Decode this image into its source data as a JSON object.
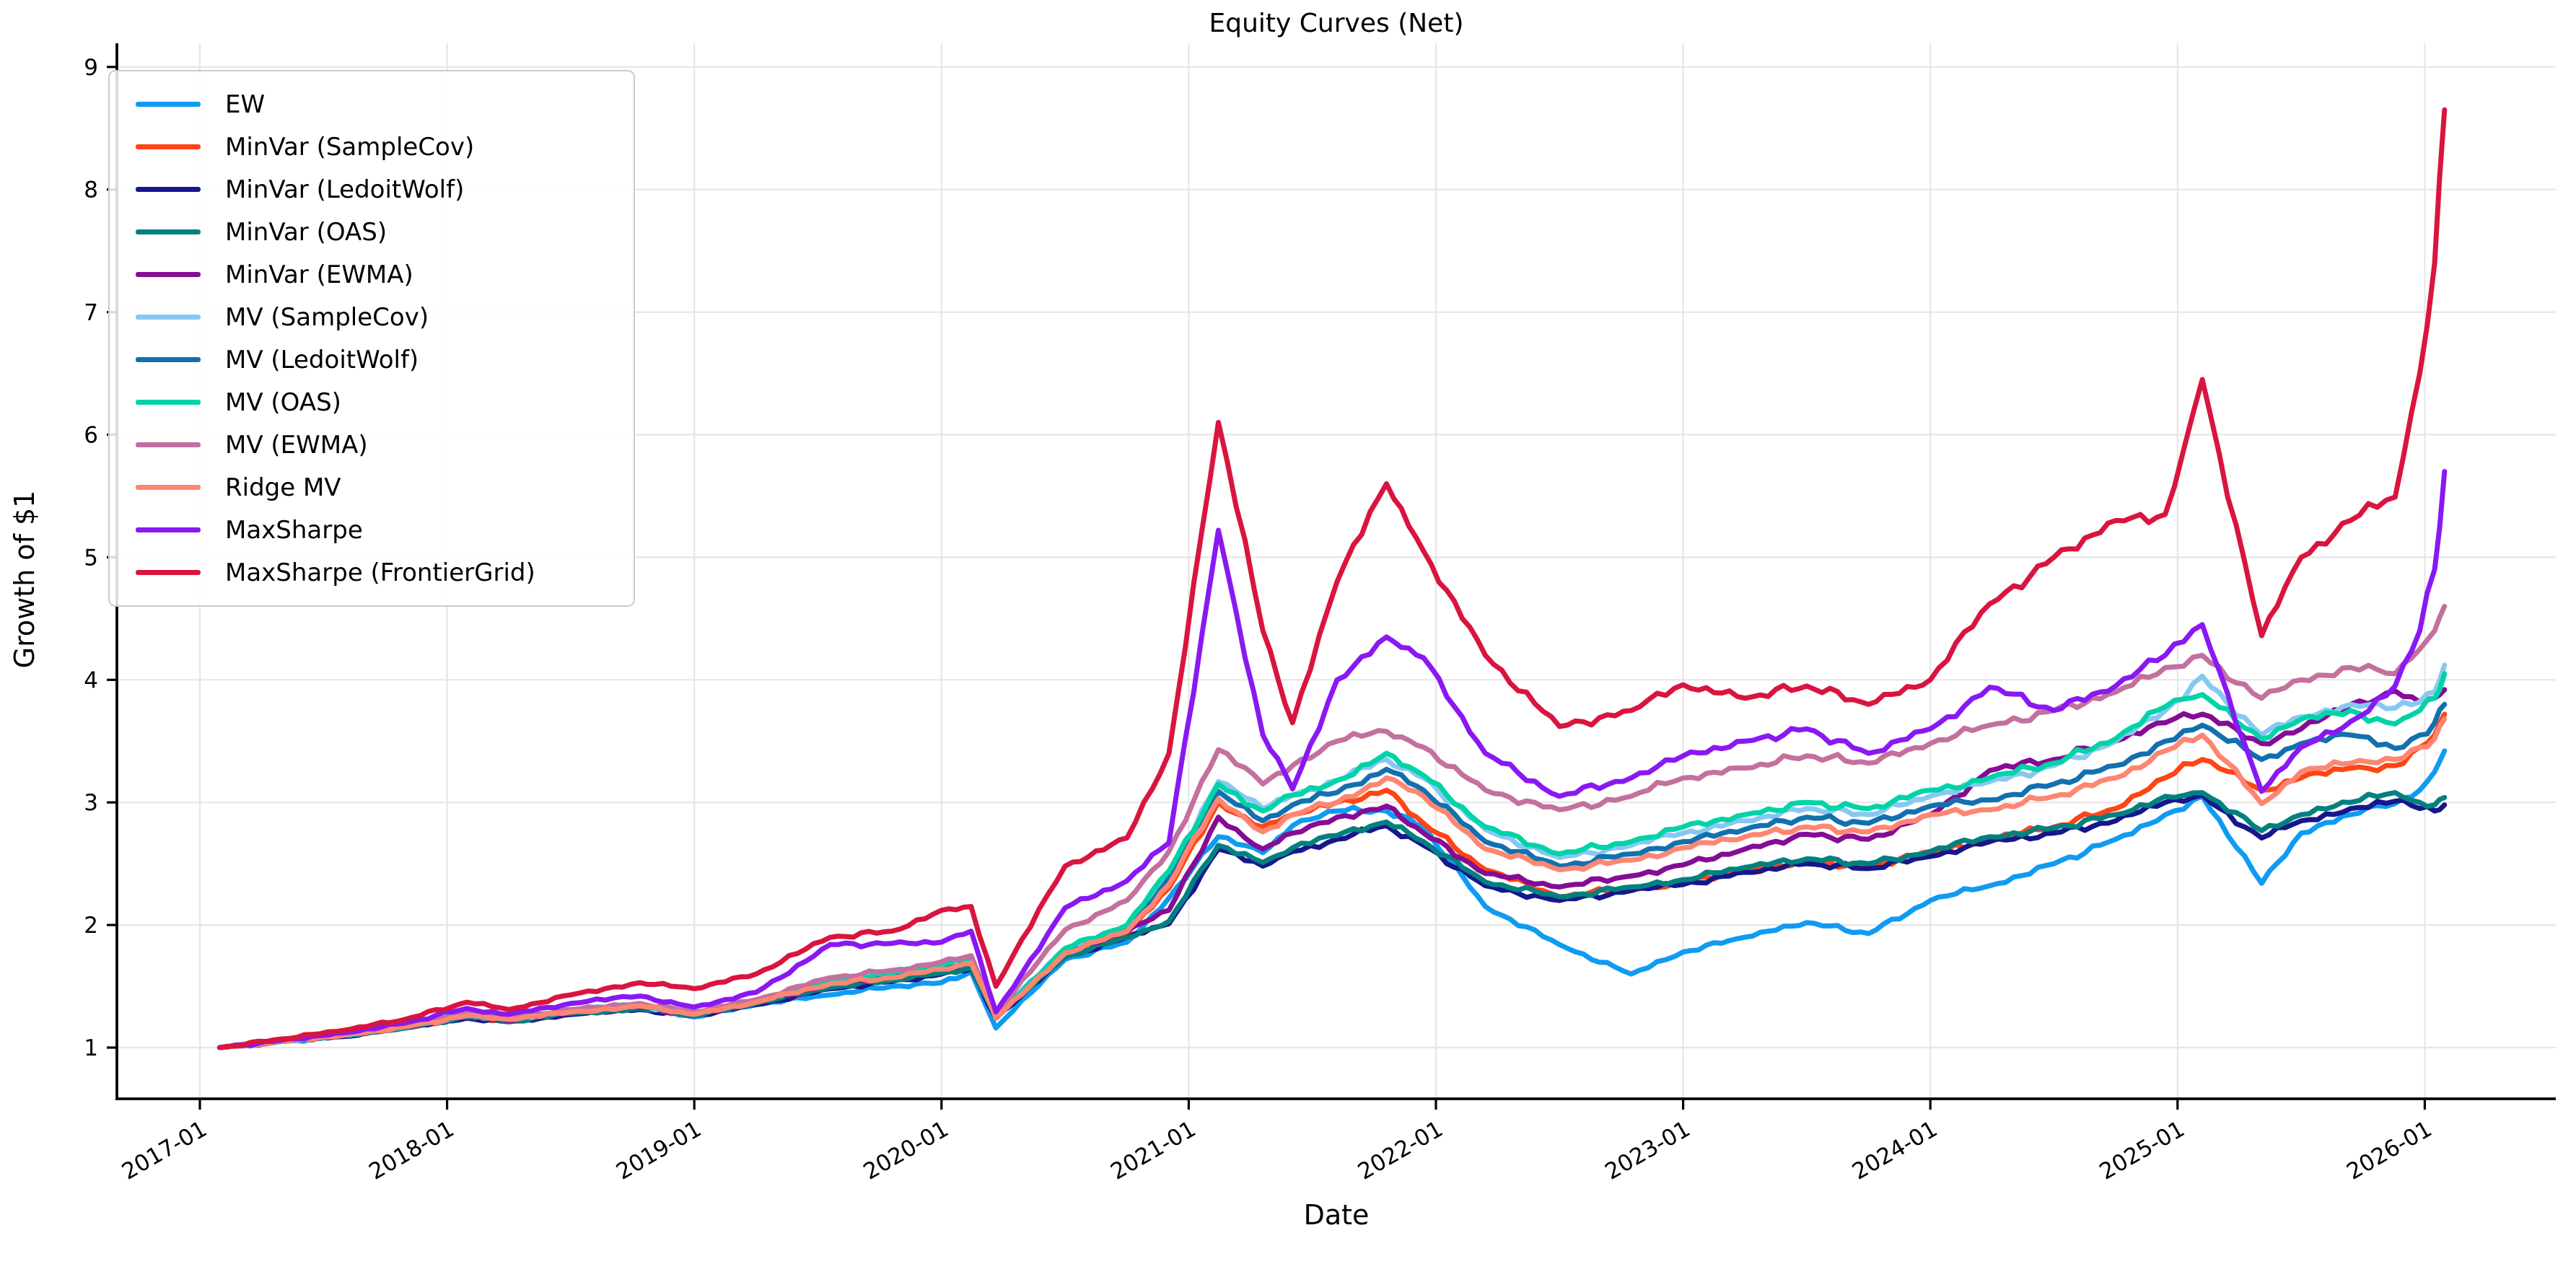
{
  "chart_data": {
    "type": "line",
    "title": "Equity Curves (Net)",
    "xlabel": "Date",
    "ylabel": "Growth of $1",
    "grid": true,
    "legend_position": "upper left",
    "x_axis": {
      "tick_labels": [
        "2017-01",
        "2018-01",
        "2019-01",
        "2020-01",
        "2021-01",
        "2022-01",
        "2023-01",
        "2024-01",
        "2025-01",
        "2026-01"
      ],
      "tick_years": [
        2017,
        2018,
        2019,
        2020,
        2021,
        2022,
        2023,
        2024,
        2025,
        2026
      ],
      "range": [
        2016.62,
        2026.53
      ],
      "unit": "decimal_year"
    },
    "y_axis": {
      "tick_labels": [
        "1",
        "2",
        "3",
        "4",
        "5",
        "6",
        "7",
        "8",
        "9"
      ],
      "ticks": [
        1,
        2,
        3,
        4,
        5,
        6,
        7,
        8,
        9
      ],
      "range": [
        0.59,
        9.05
      ]
    },
    "x": [
      2017.08,
      2017.33,
      2017.58,
      2017.83,
      2018.08,
      2018.25,
      2018.5,
      2018.78,
      2019.0,
      2019.25,
      2019.55,
      2019.8,
      2020.0,
      2020.12,
      2020.22,
      2020.5,
      2020.75,
      2020.92,
      2021.12,
      2021.3,
      2021.42,
      2021.6,
      2021.8,
      2021.95,
      2022.2,
      2022.5,
      2022.79,
      2023.0,
      2023.25,
      2023.5,
      2023.75,
      2024.0,
      2024.24,
      2024.5,
      2024.75,
      2024.95,
      2025.1,
      2025.34,
      2025.5,
      2025.7,
      2025.88,
      2025.98,
      2026.04,
      2026.08
    ],
    "series": [
      {
        "name": "EW",
        "color": "#109bf2",
        "values": [
          1.0,
          1.05,
          1.1,
          1.17,
          1.27,
          1.21,
          1.28,
          1.33,
          1.25,
          1.35,
          1.43,
          1.5,
          1.53,
          1.62,
          1.16,
          1.72,
          1.86,
          2.22,
          2.72,
          2.59,
          2.81,
          2.93,
          2.93,
          2.8,
          2.15,
          1.84,
          1.6,
          1.78,
          1.9,
          2.02,
          1.93,
          2.2,
          2.32,
          2.5,
          2.7,
          2.9,
          3.05,
          2.34,
          2.75,
          2.9,
          2.99,
          3.1,
          3.25,
          3.42
        ]
      },
      {
        "name": "MinVar (SampleCov)",
        "color": "#ff4514",
        "values": [
          1.0,
          1.05,
          1.1,
          1.16,
          1.25,
          1.22,
          1.28,
          1.32,
          1.27,
          1.36,
          1.5,
          1.56,
          1.62,
          1.66,
          1.26,
          1.76,
          1.93,
          2.3,
          3.0,
          2.8,
          2.9,
          3.0,
          3.1,
          2.83,
          2.45,
          2.23,
          2.3,
          2.34,
          2.45,
          2.52,
          2.48,
          2.6,
          2.7,
          2.8,
          2.95,
          3.2,
          3.35,
          3.1,
          3.2,
          3.28,
          3.3,
          3.45,
          3.55,
          3.72
        ]
      },
      {
        "name": "MinVar (LedoitWolf)",
        "color": "#17178c",
        "values": [
          1.0,
          1.05,
          1.09,
          1.16,
          1.24,
          1.21,
          1.27,
          1.31,
          1.26,
          1.35,
          1.48,
          1.54,
          1.6,
          1.64,
          1.24,
          1.74,
          1.9,
          2.01,
          2.62,
          2.48,
          2.6,
          2.7,
          2.81,
          2.65,
          2.32,
          2.2,
          2.28,
          2.33,
          2.43,
          2.5,
          2.46,
          2.56,
          2.68,
          2.75,
          2.85,
          3.0,
          3.06,
          2.71,
          2.85,
          2.95,
          3.01,
          2.95,
          2.93,
          2.98
        ]
      },
      {
        "name": "MinVar (OAS)",
        "color": "#038080",
        "values": [
          1.0,
          1.05,
          1.1,
          1.16,
          1.25,
          1.21,
          1.28,
          1.32,
          1.26,
          1.36,
          1.49,
          1.55,
          1.61,
          1.65,
          1.25,
          1.74,
          1.9,
          2.03,
          2.65,
          2.51,
          2.63,
          2.73,
          2.84,
          2.68,
          2.35,
          2.23,
          2.31,
          2.37,
          2.47,
          2.54,
          2.5,
          2.6,
          2.72,
          2.79,
          2.9,
          3.05,
          3.08,
          2.77,
          2.9,
          3.0,
          3.08,
          3.0,
          2.98,
          3.04
        ]
      },
      {
        "name": "MinVar (EWMA)",
        "color": "#850c94",
        "values": [
          1.0,
          1.05,
          1.1,
          1.17,
          1.26,
          1.22,
          1.29,
          1.33,
          1.27,
          1.37,
          1.52,
          1.58,
          1.65,
          1.7,
          1.27,
          1.77,
          1.95,
          2.12,
          2.88,
          2.62,
          2.75,
          2.88,
          2.97,
          2.75,
          2.42,
          2.31,
          2.4,
          2.49,
          2.62,
          2.74,
          2.7,
          2.9,
          3.26,
          3.35,
          3.5,
          3.65,
          3.72,
          3.48,
          3.6,
          3.8,
          3.91,
          3.82,
          3.85,
          3.92
        ]
      },
      {
        "name": "MV (SampleCov)",
        "color": "#87c8f2",
        "values": [
          1.0,
          1.05,
          1.1,
          1.17,
          1.27,
          1.23,
          1.3,
          1.34,
          1.28,
          1.38,
          1.55,
          1.6,
          1.67,
          1.72,
          1.26,
          1.8,
          1.98,
          2.42,
          3.17,
          2.95,
          3.06,
          3.18,
          3.35,
          3.2,
          2.78,
          2.55,
          2.65,
          2.75,
          2.85,
          2.95,
          2.9,
          3.05,
          3.17,
          3.3,
          3.5,
          3.75,
          4.03,
          3.55,
          3.7,
          3.8,
          3.77,
          3.82,
          3.9,
          4.12
        ]
      },
      {
        "name": "MV (LedoitWolf)",
        "color": "#1370af",
        "values": [
          1.0,
          1.05,
          1.1,
          1.17,
          1.26,
          1.23,
          1.29,
          1.34,
          1.27,
          1.37,
          1.53,
          1.58,
          1.65,
          1.7,
          1.25,
          1.78,
          1.96,
          2.38,
          3.09,
          2.85,
          2.98,
          3.08,
          3.27,
          3.1,
          2.68,
          2.48,
          2.58,
          2.68,
          2.78,
          2.88,
          2.83,
          2.97,
          3.02,
          3.15,
          3.3,
          3.5,
          3.63,
          3.35,
          3.48,
          3.55,
          3.44,
          3.55,
          3.65,
          3.8
        ]
      },
      {
        "name": "MV (OAS)",
        "color": "#00d3a7",
        "values": [
          1.0,
          1.05,
          1.1,
          1.17,
          1.27,
          1.23,
          1.3,
          1.35,
          1.28,
          1.38,
          1.55,
          1.61,
          1.68,
          1.73,
          1.26,
          1.81,
          2.0,
          2.44,
          3.15,
          2.93,
          3.06,
          3.18,
          3.4,
          3.22,
          2.8,
          2.58,
          2.68,
          2.8,
          2.9,
          3.0,
          2.95,
          3.1,
          3.2,
          3.32,
          3.52,
          3.78,
          3.88,
          3.52,
          3.68,
          3.75,
          3.64,
          3.75,
          3.85,
          4.05
        ]
      },
      {
        "name": "MV (EWMA)",
        "color": "#c4709f",
        "values": [
          1.0,
          1.06,
          1.11,
          1.18,
          1.28,
          1.24,
          1.31,
          1.36,
          1.29,
          1.39,
          1.57,
          1.63,
          1.7,
          1.75,
          1.28,
          1.96,
          2.2,
          2.6,
          3.43,
          3.15,
          3.3,
          3.5,
          3.58,
          3.45,
          3.1,
          2.94,
          3.05,
          3.2,
          3.28,
          3.38,
          3.32,
          3.48,
          3.63,
          3.75,
          3.9,
          4.1,
          4.2,
          3.85,
          4.0,
          4.1,
          4.05,
          4.25,
          4.4,
          4.6
        ]
      },
      {
        "name": "Ridge MV",
        "color": "#fd8672",
        "values": [
          1.0,
          1.05,
          1.1,
          1.17,
          1.26,
          1.23,
          1.29,
          1.34,
          1.27,
          1.37,
          1.52,
          1.57,
          1.64,
          1.69,
          1.24,
          1.77,
          1.95,
          2.33,
          3.03,
          2.76,
          2.9,
          3.0,
          3.2,
          3.05,
          2.62,
          2.45,
          2.53,
          2.63,
          2.72,
          2.8,
          2.76,
          2.9,
          2.94,
          3.05,
          3.2,
          3.42,
          3.55,
          2.99,
          3.25,
          3.32,
          3.35,
          3.45,
          3.52,
          3.68
        ]
      },
      {
        "name": "MaxSharpe",
        "color": "#8a18f2",
        "values": [
          1.0,
          1.06,
          1.12,
          1.2,
          1.32,
          1.27,
          1.36,
          1.42,
          1.33,
          1.45,
          1.84,
          1.85,
          1.86,
          1.95,
          1.29,
          2.14,
          2.36,
          2.67,
          5.22,
          3.55,
          3.11,
          4.0,
          4.35,
          4.18,
          3.4,
          3.05,
          3.2,
          3.38,
          3.5,
          3.6,
          3.4,
          3.6,
          3.94,
          3.75,
          3.95,
          4.2,
          4.45,
          3.09,
          3.45,
          3.66,
          3.95,
          4.4,
          4.9,
          5.7
        ]
      },
      {
        "name": "MaxSharpe (FrontierGrid)",
        "color": "#d9153f",
        "values": [
          1.0,
          1.07,
          1.14,
          1.23,
          1.37,
          1.31,
          1.43,
          1.53,
          1.48,
          1.6,
          1.9,
          1.95,
          2.12,
          2.15,
          1.5,
          2.48,
          2.71,
          3.4,
          6.1,
          4.4,
          3.65,
          4.8,
          5.6,
          5.05,
          4.2,
          3.62,
          3.75,
          3.96,
          3.85,
          3.95,
          3.8,
          4.0,
          4.62,
          5.0,
          5.3,
          5.35,
          6.45,
          4.36,
          5.0,
          5.3,
          5.49,
          6.5,
          7.4,
          8.65
        ]
      }
    ],
    "annotations": {
      "peak_2021_max": 6.1,
      "final_max": 8.65,
      "start_value": 1.0
    }
  }
}
